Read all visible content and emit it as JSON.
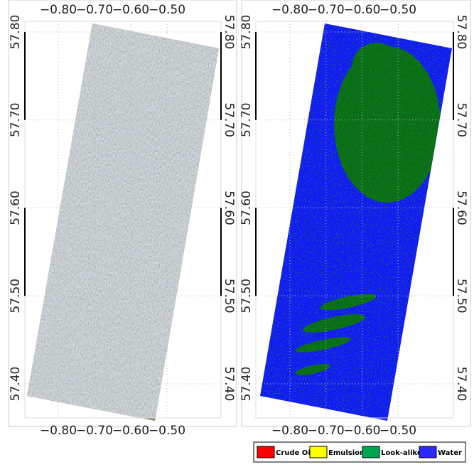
{
  "panels": [
    {
      "xticks": [
        {
          "value": -0.8,
          "label": "−0.80"
        },
        {
          "value": -0.7,
          "label": "−0.70"
        },
        {
          "value": -0.6,
          "label": "−0.60"
        },
        {
          "value": -0.5,
          "label": "−0.50"
        }
      ],
      "yticks": [
        {
          "value": 57.8,
          "label": "57.80"
        },
        {
          "value": 57.7,
          "label": "57.70"
        },
        {
          "value": 57.6,
          "label": "57.60"
        },
        {
          "value": 57.5,
          "label": "57.50"
        },
        {
          "value": 57.4,
          "label": "57.40"
        }
      ]
    },
    {
      "xticks": [
        {
          "value": -0.8,
          "label": "−0.80"
        },
        {
          "value": -0.7,
          "label": "−0.70"
        },
        {
          "value": -0.6,
          "label": "−0.60"
        },
        {
          "value": -0.5,
          "label": "−0.50"
        }
      ],
      "yticks": [
        {
          "value": 57.8,
          "label": "57.80"
        },
        {
          "value": 57.7,
          "label": "57.70"
        },
        {
          "value": 57.6,
          "label": "57.60"
        },
        {
          "value": 57.5,
          "label": "57.50"
        },
        {
          "value": 57.4,
          "label": "57.40"
        }
      ]
    }
  ],
  "legend": [
    {
      "label": "Crude Oil",
      "color": "#ff0000"
    },
    {
      "label": "Emulsion",
      "color": "#ffff00"
    },
    {
      "label": "Look-alike",
      "color": "#00a550"
    },
    {
      "label": "Water",
      "color": "#2b2bff"
    }
  ]
}
